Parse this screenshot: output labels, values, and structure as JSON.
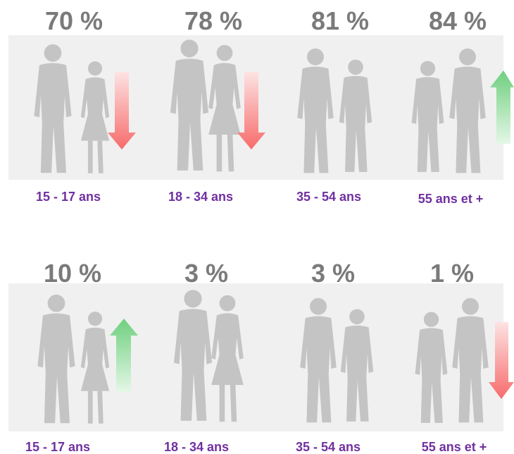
{
  "rows": [
    {
      "items": [
        {
          "value": "70 %",
          "label": "15 - 17 ans"
        },
        {
          "value": "78 %",
          "label": "18 - 34 ans"
        },
        {
          "value": "81 %",
          "label": "35 - 54 ans"
        },
        {
          "value": "84 %",
          "label": "55 ans et +"
        }
      ]
    },
    {
      "items": [
        {
          "value": "10 %",
          "label": "15 - 17 ans"
        },
        {
          "value": "3 %",
          "label": "18 - 34 ans"
        },
        {
          "value": "3 %",
          "label": "35 - 54 ans"
        },
        {
          "value": "1 %",
          "label": "55 ans et +"
        }
      ]
    }
  ]
}
